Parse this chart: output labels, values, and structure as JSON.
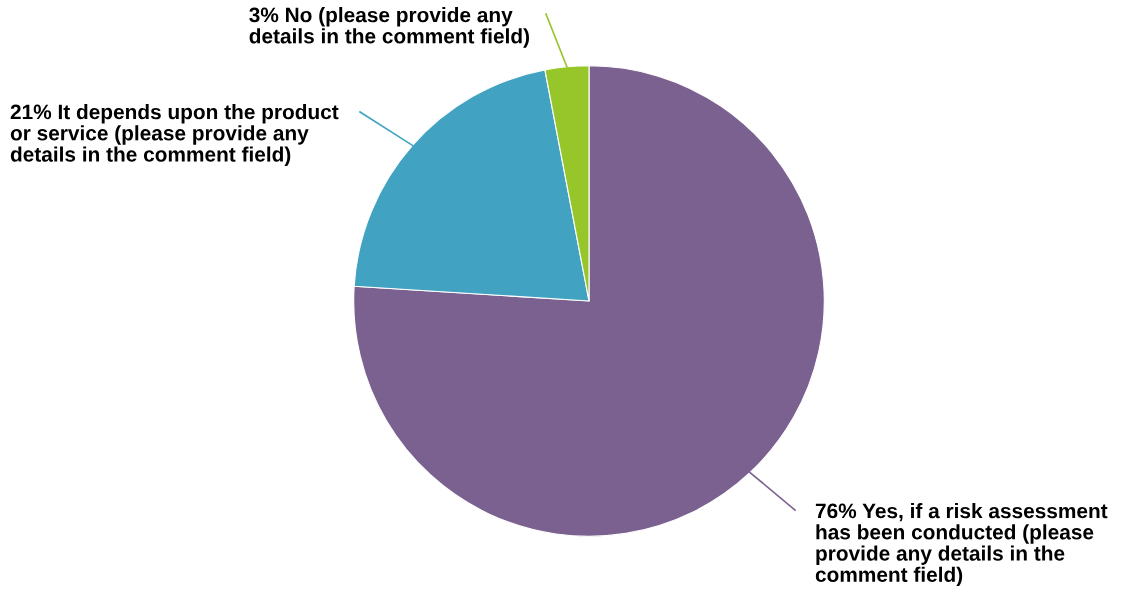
{
  "chart_data": {
    "type": "pie",
    "categories": [
      "Yes, if a risk assessment has been conducted (please provide any details in the comment field)",
      "It depends upon the product or service (please provide any details in the comment field)",
      "No (please provide any details in the comment field)"
    ],
    "values": [
      76,
      21,
      3
    ],
    "value_labels": [
      "76%",
      "21%",
      "3%"
    ],
    "colors": [
      "#7b6190",
      "#41a3c1",
      "#97c62b"
    ],
    "legend": false
  }
}
